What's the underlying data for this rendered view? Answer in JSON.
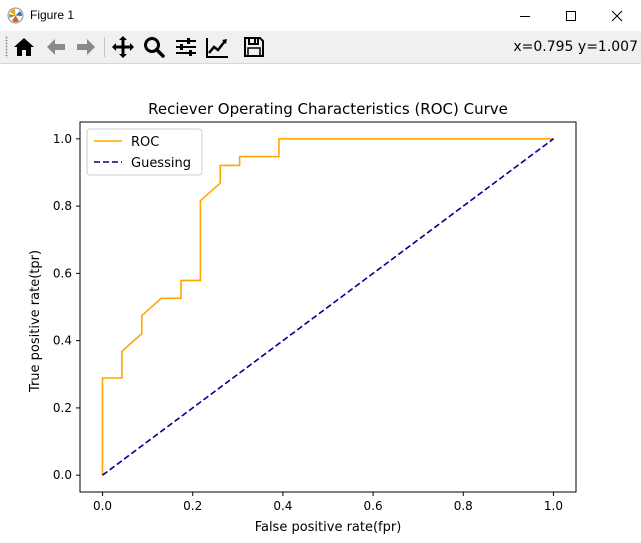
{
  "window": {
    "title": "Figure 1",
    "icon": "matplotlib-icon",
    "controls": [
      "minimize-icon",
      "maximize-icon",
      "close-icon"
    ]
  },
  "toolbar": {
    "buttons": [
      "home-icon",
      "back-arrow-icon",
      "forward-arrow-icon",
      "pan-icon",
      "zoom-icon",
      "subplots-icon",
      "edit-axis-icon",
      "save-icon"
    ],
    "coords": "x=0.795 y=1.007"
  },
  "chart_data": {
    "type": "line",
    "title": "Reciever Operating Characteristics (ROC) Curve",
    "xlabel": "False positive rate(fpr)",
    "ylabel": "True positive rate(tpr)",
    "xlim": [
      -0.05,
      1.05
    ],
    "ylim": [
      -0.05,
      1.05
    ],
    "xticks": [
      "0.0",
      "0.2",
      "0.4",
      "0.6",
      "0.8",
      "1.0"
    ],
    "yticks": [
      "0.0",
      "0.2",
      "0.4",
      "0.6",
      "0.8",
      "1.0"
    ],
    "grid": false,
    "legend": "upper-left",
    "series": [
      {
        "name": "ROC",
        "color": "#ffa500",
        "style": "solid",
        "x": [
          0.0,
          0.0,
          0.043,
          0.043,
          0.087,
          0.087,
          0.13,
          0.13,
          0.174,
          0.174,
          0.217,
          0.217,
          0.261,
          0.261,
          0.304,
          0.304,
          0.391,
          0.391,
          1.0
        ],
        "y": [
          0.0,
          0.289,
          0.289,
          0.368,
          0.421,
          0.474,
          0.526,
          0.526,
          0.526,
          0.579,
          0.579,
          0.816,
          0.868,
          0.921,
          0.921,
          0.947,
          0.947,
          1.0,
          1.0
        ]
      },
      {
        "name": "Guessing",
        "color": "#00008b",
        "style": "dashed",
        "x": [
          0,
          1
        ],
        "y": [
          0,
          1
        ]
      }
    ]
  }
}
